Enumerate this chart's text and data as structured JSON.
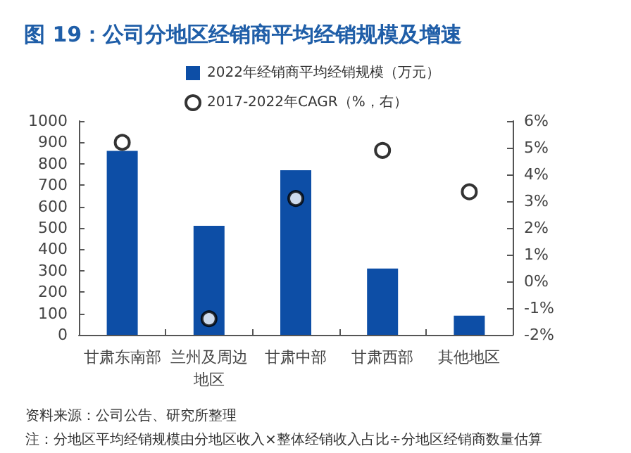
{
  "chart_data": {
    "type": "bar",
    "title": "图 19：公司分地区经销商平均经销规模及增速",
    "categories": [
      "甘肃东南部",
      "兰州及周边地区",
      "甘肃中部",
      "甘肃西部",
      "其他地区"
    ],
    "series": [
      {
        "name": "2022年经销商平均经销规模（万元）",
        "color": "#0d4ea6",
        "values": [
          860,
          510,
          770,
          310,
          90
        ]
      },
      {
        "name": "2017-2022年CAGR（%，右）",
        "type": "scatter",
        "axis": "y2",
        "color": "#000000",
        "values": [
          5.2,
          -1.4,
          3.1,
          4.9,
          3.35
        ]
      }
    ],
    "ylim": [
      0,
      1000
    ],
    "yticks": [
      0,
      100,
      200,
      300,
      400,
      500,
      600,
      700,
      800,
      900,
      1000
    ],
    "y2lim": [
      -2,
      6
    ],
    "y2ticks": [
      {
        "value": -2,
        "label": "-2%"
      },
      {
        "value": -1,
        "label": "-1%"
      },
      {
        "value": 0,
        "label": "0%"
      },
      {
        "value": 1,
        "label": "1%"
      },
      {
        "value": 2,
        "label": "2%"
      },
      {
        "value": 3,
        "label": "3%"
      },
      {
        "value": 4,
        "label": "4%"
      },
      {
        "value": 5,
        "label": "5%"
      },
      {
        "value": 6,
        "label": "6%"
      }
    ],
    "grid": false,
    "legend": "top",
    "marker": "circle",
    "annotations": [
      "资料来源：公司公告、研究所整理",
      "注：分地区平均经销规模由分地区收入×整体经销收入占比÷分地区经销商数量估算"
    ]
  }
}
